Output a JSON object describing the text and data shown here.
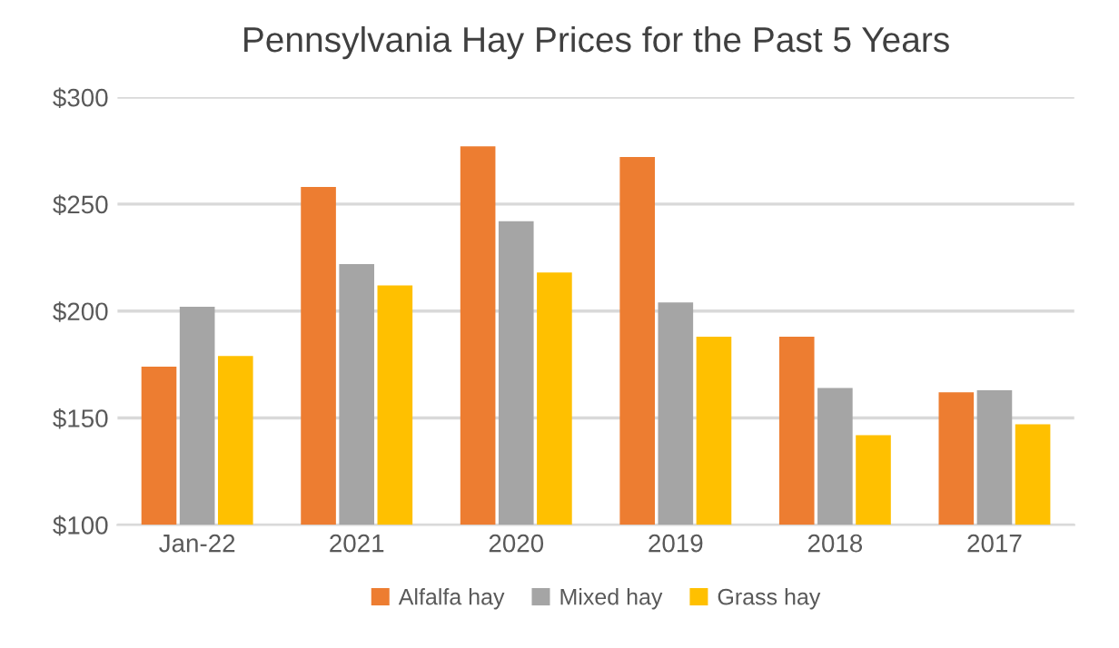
{
  "chart_data": {
    "type": "bar",
    "title": "Pennsylvania Hay Prices for the Past 5 Years",
    "categories": [
      "Jan-22",
      "2021",
      "2020",
      "2019",
      "2018",
      "2017"
    ],
    "series": [
      {
        "name": "Alfalfa hay",
        "color": "#ed7d31",
        "values": [
          174,
          258,
          277,
          272,
          188,
          162
        ]
      },
      {
        "name": "Mixed hay",
        "color": "#a5a5a5",
        "values": [
          202,
          222,
          242,
          204,
          164,
          163
        ]
      },
      {
        "name": "Grass hay",
        "color": "#ffc000",
        "values": [
          179,
          212,
          218,
          188,
          142,
          147
        ]
      }
    ],
    "ylim": [
      100,
      300
    ],
    "yticks": [
      {
        "value": 100,
        "label": "$100"
      },
      {
        "value": 150,
        "label": "$150"
      },
      {
        "value": 200,
        "label": "$200"
      },
      {
        "value": 250,
        "label": "$250"
      },
      {
        "value": 300,
        "label": "$300"
      }
    ],
    "grid": "y",
    "legend": "bottom"
  }
}
